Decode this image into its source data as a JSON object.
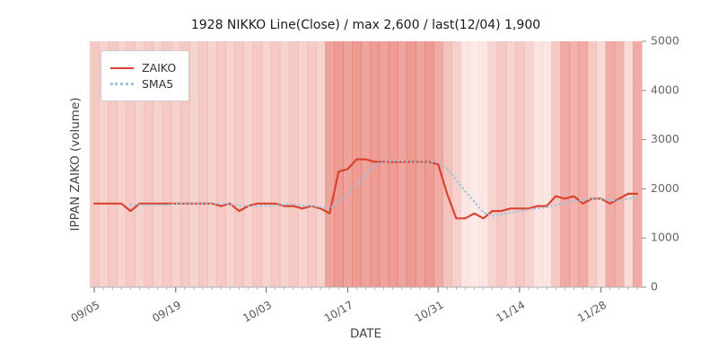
{
  "chart_data": {
    "type": "line",
    "title": "1928 NIKKO Line(Close) / max 2,600 / last(12/04) 1,900",
    "xlabel": "DATE",
    "ylabel": "IPPAN ZAIKO (volume)",
    "ylim": [
      0,
      5000
    ],
    "yticks": [
      0,
      1000,
      2000,
      3000,
      4000,
      5000
    ],
    "xticks": [
      "09/05",
      "09/19",
      "10/03",
      "10/17",
      "10/31",
      "11/14",
      "11/28"
    ],
    "grid": false,
    "legend_position": "upper-left",
    "sma_window": 5,
    "legend": [
      {
        "label": "ZAIKO",
        "color": "#d9432f",
        "style": "solid"
      },
      {
        "label": "SMA5",
        "color": "#9ec4dd",
        "style": "dotted"
      }
    ],
    "colors": {
      "plot_bg": "#fdf4f2",
      "band": "#e05246",
      "tick": "#666666",
      "spine": "#b0b0b0"
    },
    "dates": [
      "09/05",
      "09/06",
      "09/07",
      "09/08",
      "09/11",
      "09/12",
      "09/13",
      "09/14",
      "09/15",
      "09/19",
      "09/20",
      "09/21",
      "09/22",
      "09/25",
      "09/26",
      "09/27",
      "09/28",
      "09/29",
      "10/02",
      "10/03",
      "10/04",
      "10/05",
      "10/06",
      "10/10",
      "10/11",
      "10/12",
      "10/13",
      "10/16",
      "10/17",
      "10/18",
      "10/19",
      "10/20",
      "10/23",
      "10/24",
      "10/25",
      "10/26",
      "10/27",
      "10/30",
      "10/31",
      "11/01",
      "11/02",
      "11/06",
      "11/07",
      "11/08",
      "11/09",
      "11/10",
      "11/13",
      "11/14",
      "11/15",
      "11/16",
      "11/17",
      "11/20",
      "11/21",
      "11/22",
      "11/24",
      "11/27",
      "11/28",
      "11/29",
      "11/30",
      "12/01",
      "12/04"
    ],
    "series": [
      {
        "name": "ZAIKO",
        "values": [
          1700,
          1700,
          1700,
          1700,
          1550,
          1700,
          1700,
          1700,
          1700,
          1700,
          1700,
          1700,
          1700,
          1700,
          1650,
          1700,
          1550,
          1650,
          1700,
          1700,
          1700,
          1650,
          1650,
          1600,
          1650,
          1600,
          1500,
          2350,
          2400,
          2600,
          2600,
          2550,
          2550,
          2550,
          2550,
          2550,
          2550,
          2550,
          2500,
          1900,
          1400,
          1400,
          1500,
          1400,
          1550,
          1550,
          1600,
          1600,
          1600,
          1650,
          1650,
          1850,
          1800,
          1850,
          1700,
          1800,
          1800,
          1700,
          1800,
          1900,
          1900
        ]
      },
      {
        "name": "SMA5",
        "derived": "5-period moving average of ZAIKO"
      }
    ],
    "band_intensity": [
      0.26,
      0.2,
      0.26,
      0.2,
      0.26,
      0.2,
      0.26,
      0.2,
      0.26,
      0.2,
      0.26,
      0.2,
      0.26,
      0.2,
      0.26,
      0.2,
      0.26,
      0.2,
      0.26,
      0.2,
      0.26,
      0.2,
      0.26,
      0.2,
      0.26,
      0.2,
      0.5,
      0.55,
      0.5,
      0.55,
      0.5,
      0.55,
      0.5,
      0.55,
      0.5,
      0.55,
      0.5,
      0.55,
      0.45,
      0.3,
      0.22,
      0.08,
      0.06,
      0.08,
      0.2,
      0.26,
      0.2,
      0.26,
      0.2,
      0.1,
      0.08,
      0.26,
      0.45,
      0.4,
      0.45,
      0.26,
      0.15,
      0.45,
      0.4,
      0.15,
      0.45
    ]
  }
}
